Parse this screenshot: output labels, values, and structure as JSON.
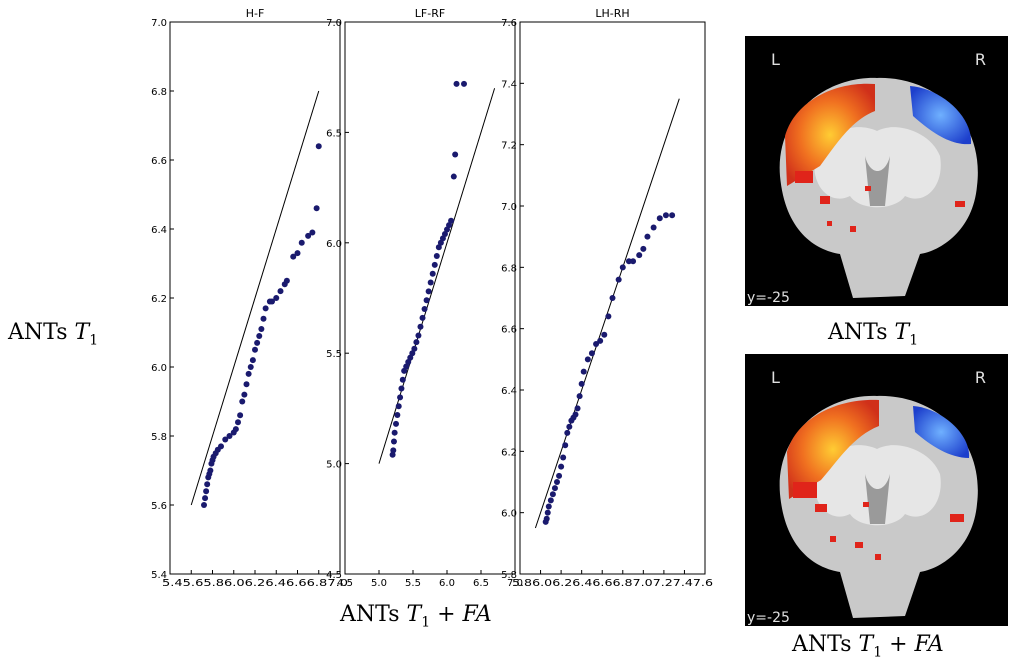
{
  "row_label": {
    "text": "ANTs ",
    "sub": "1",
    "var": "T"
  },
  "x_caption": {
    "prefix": "ANTs ",
    "var": "T",
    "sub": "1",
    "suffix": " + FA"
  },
  "brain_top_caption": {
    "prefix": "ANTs ",
    "var": "T",
    "sub": "1"
  },
  "brain_bottom_caption": {
    "prefix": "ANTs ",
    "var": "T",
    "sub": "1",
    "suffix": " + FA"
  },
  "brains": {
    "top": {
      "left_letter": "L",
      "right_letter": "R",
      "coord": "y=-25"
    },
    "bottom": {
      "left_letter": "L",
      "right_letter": "R",
      "coord": "y=-25"
    }
  },
  "colors": {
    "points": "#1a1a6e",
    "hot": "#e8401c",
    "cold": "#2a5fe0"
  },
  "chart_data": [
    {
      "type": "scatter",
      "title": "H-F",
      "xticks": [
        "5.4",
        "5.6",
        "5.8",
        "6.0",
        "6.2",
        "6.4",
        "6.6",
        "6.8",
        "7.0"
      ],
      "xtick_text": "5.45.65.86.06.26.46.66.87.0",
      "yticks": [
        "5.4",
        "5.6",
        "5.8",
        "6.0",
        "6.2",
        "6.4",
        "6.6",
        "6.8",
        "7.0"
      ],
      "xlim": [
        5.4,
        7.0
      ],
      "ylim": [
        5.4,
        7.0
      ],
      "reference_line": {
        "x": [
          5.6,
          6.8
        ],
        "y": [
          5.6,
          6.8
        ]
      },
      "points": {
        "x": [
          5.72,
          5.73,
          5.74,
          5.75,
          5.76,
          5.77,
          5.78,
          5.79,
          5.8,
          5.81,
          5.83,
          5.85,
          5.88,
          5.92,
          5.96,
          6.0,
          6.02,
          6.04,
          6.06,
          6.08,
          6.1,
          6.12,
          6.14,
          6.16,
          6.18,
          6.2,
          6.22,
          6.24,
          6.26,
          6.28,
          6.3,
          6.34,
          6.36,
          6.4,
          6.44,
          6.48,
          6.5,
          6.56,
          6.6,
          6.64,
          6.7,
          6.74,
          6.78,
          6.8
        ],
        "y": [
          5.6,
          5.62,
          5.64,
          5.66,
          5.68,
          5.69,
          5.7,
          5.72,
          5.73,
          5.74,
          5.75,
          5.76,
          5.77,
          5.79,
          5.8,
          5.81,
          5.82,
          5.84,
          5.86,
          5.9,
          5.92,
          5.95,
          5.98,
          6.0,
          6.02,
          6.05,
          6.07,
          6.09,
          6.11,
          6.14,
          6.17,
          6.19,
          6.19,
          6.2,
          6.22,
          6.24,
          6.25,
          6.32,
          6.33,
          6.36,
          6.38,
          6.39,
          6.46,
          6.64
        ]
      }
    },
    {
      "type": "scatter",
      "title": "LF-RF",
      "xticks": [
        "4.5",
        "5.0",
        "5.5",
        "6.0",
        "6.5",
        "7.0"
      ],
      "yticks": [
        "4.5",
        "5.0",
        "5.5",
        "6.0",
        "6.5",
        "7.0"
      ],
      "xlim": [
        4.5,
        7.0
      ],
      "ylim": [
        4.5,
        7.0
      ],
      "reference_line": {
        "x": [
          5.0,
          6.7
        ],
        "y": [
          5.0,
          6.7
        ]
      },
      "points": {
        "x": [
          5.2,
          5.21,
          5.22,
          5.23,
          5.25,
          5.27,
          5.29,
          5.31,
          5.33,
          5.35,
          5.37,
          5.4,
          5.43,
          5.46,
          5.49,
          5.52,
          5.55,
          5.58,
          5.61,
          5.64,
          5.67,
          5.7,
          5.73,
          5.76,
          5.79,
          5.82,
          5.85,
          5.88,
          5.91,
          5.94,
          5.97,
          6.0,
          6.03,
          6.06,
          6.1,
          6.12,
          6.14,
          6.25
        ],
        "y": [
          5.04,
          5.06,
          5.1,
          5.14,
          5.18,
          5.22,
          5.26,
          5.3,
          5.34,
          5.38,
          5.42,
          5.44,
          5.46,
          5.48,
          5.5,
          5.52,
          5.55,
          5.58,
          5.62,
          5.66,
          5.7,
          5.74,
          5.78,
          5.82,
          5.86,
          5.9,
          5.94,
          5.98,
          6.0,
          6.02,
          6.04,
          6.06,
          6.08,
          6.1,
          6.3,
          6.4,
          6.72,
          6.72
        ]
      }
    },
    {
      "type": "scatter",
      "title": "LH-RH",
      "xticks": [
        "5.8",
        "6.0",
        "6.2",
        "6.4",
        "6.6",
        "6.8",
        "7.0",
        "7.2",
        "7.4",
        "7.6"
      ],
      "xtick_text": "5.86.06.26.46.66.87.07.27.47.6",
      "yticks": [
        "5.8",
        "6.0",
        "6.2",
        "6.4",
        "6.6",
        "6.8",
        "7.0",
        "7.2",
        "7.4",
        "7.6"
      ],
      "xlim": [
        5.8,
        7.6
      ],
      "ylim": [
        5.8,
        7.6
      ],
      "reference_line": {
        "x": [
          5.95,
          7.35
        ],
        "y": [
          5.95,
          7.35
        ]
      },
      "points": {
        "x": [
          6.05,
          6.06,
          6.07,
          6.08,
          6.1,
          6.12,
          6.14,
          6.16,
          6.18,
          6.2,
          6.22,
          6.24,
          6.26,
          6.28,
          6.3,
          6.32,
          6.34,
          6.36,
          6.38,
          6.4,
          6.42,
          6.46,
          6.5,
          6.54,
          6.58,
          6.62,
          6.66,
          6.7,
          6.76,
          6.8,
          6.86,
          6.9,
          6.96,
          7.0,
          7.04,
          7.1,
          7.16,
          7.22,
          7.28
        ],
        "y": [
          5.97,
          5.98,
          6.0,
          6.02,
          6.04,
          6.06,
          6.08,
          6.1,
          6.12,
          6.15,
          6.18,
          6.22,
          6.26,
          6.28,
          6.3,
          6.31,
          6.32,
          6.34,
          6.38,
          6.42,
          6.46,
          6.5,
          6.52,
          6.55,
          6.56,
          6.58,
          6.64,
          6.7,
          6.76,
          6.8,
          6.82,
          6.82,
          6.84,
          6.86,
          6.9,
          6.93,
          6.96,
          6.97,
          6.97
        ]
      }
    }
  ]
}
